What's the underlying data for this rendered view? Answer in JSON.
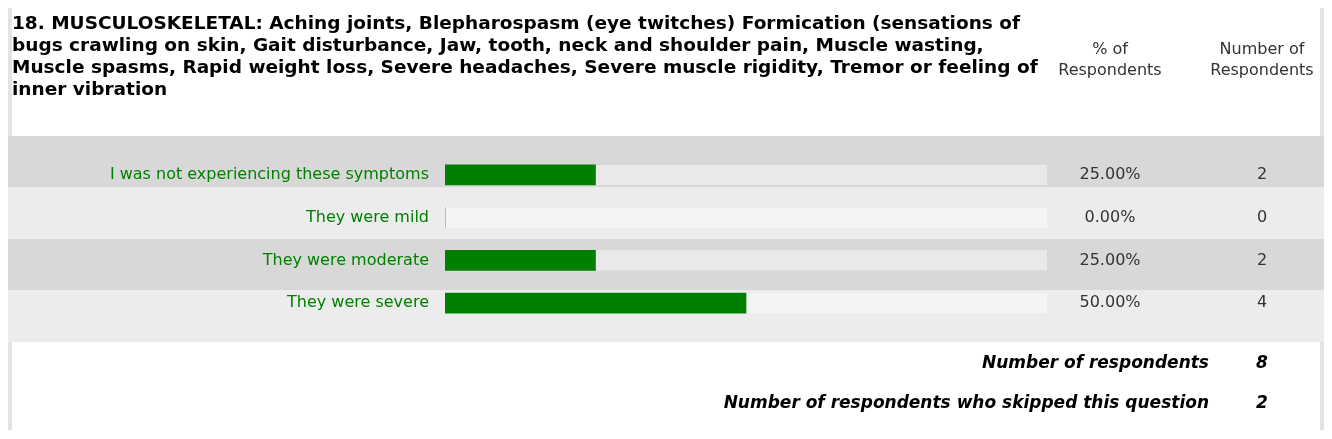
{
  "chart_data": {
    "type": "bar",
    "orientation": "horizontal",
    "title": "18. MUSCULOSKELETAL: Aching joints, Blepharospasm (eye twitches) Formication (sensations of bugs crawling on skin, Gait disturbance, Jaw, tooth, neck and shoulder pain, Muscle wasting, Muscle spasms, Rapid weight loss, Severe headaches, Severe muscle rigidity, Tremor or feeling of inner vibration",
    "categories": [
      "I was not experiencing these symptoms",
      "They were mild",
      "They were moderate",
      "They were severe"
    ],
    "values": [
      25,
      0,
      25,
      50
    ],
    "value_labels": [
      "25.00%",
      "0.00%",
      "25.00%",
      "50.00%"
    ],
    "color": "#008000",
    "xlim": [
      0,
      100
    ],
    "tick_labels": "y",
    "annotations": [
      "% of Respondents",
      "Number of Respondents",
      "2",
      "0",
      "2",
      "4",
      "Number of respondents",
      "8",
      "Number of respondents who skipped this question",
      "2"
    ]
  }
}
